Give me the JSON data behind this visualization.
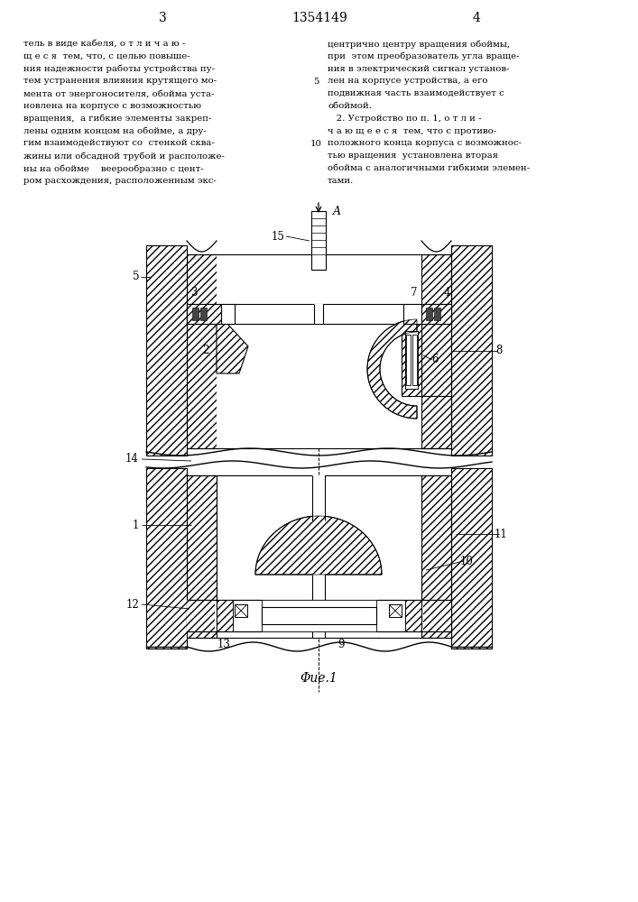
{
  "page_num_left": "3",
  "page_num_center": "1354149",
  "page_num_right": "4",
  "text_left": [
    "тель в виде кабеля, о т л и ч а ю -",
    "щ е с я  тем, что, с целью повыше-",
    "ния надежности работы устройства пу-",
    "тем устранения влияния крутящего мо-",
    "мента от энергоносителя, обойма уста-",
    "новлена на корпусе с возможностью",
    "вращения,  а гибкие элементы закреп-",
    "лены одним концом на обойме, а дру-",
    "гим взаимодействуют со  стенкой сква-",
    "жины или обсадной трубой и расположе-",
    "ны на обойме    веерообразно с цент-",
    "ром расхождения, расположенным экс-"
  ],
  "text_right": [
    "центрично центру вращения обоймы,",
    "при  этом преобразователь угла враще-",
    "ния в электрический сигнал установ-",
    "лен на корпусе устройства, а его",
    "подвижная часть взаимодействует с",
    "обоймой.",
    "   2. Устройство по п. 1, о т л и -",
    "ч а ю щ е е с я  тем, что с противо-",
    "положного конца корпуса с возможнос-",
    "тью вращения  установлена вторая",
    "обойма с аналогичными гибкими элемен-",
    "тами."
  ],
  "figure_caption": "Φue.1",
  "bg_color": "#ffffff"
}
